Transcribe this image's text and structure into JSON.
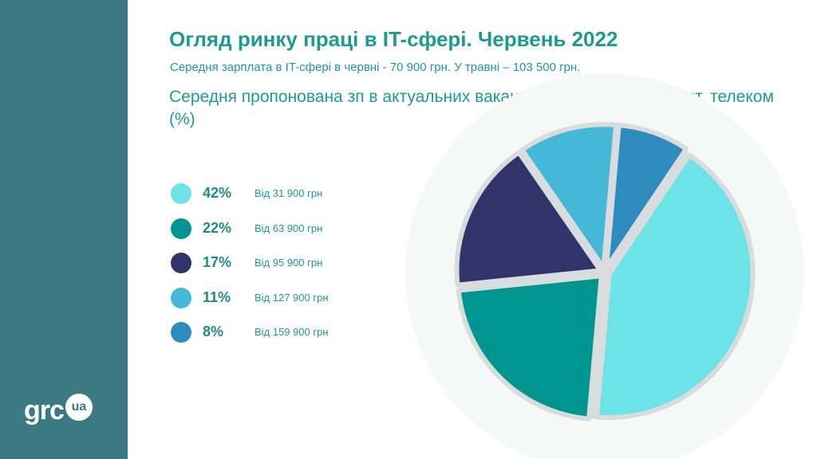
{
  "title": "Огляд ринку праці в IT-сфері. Червень 2022",
  "subtitle": "Середня зарплата в IT-сфері в червні - 70 900 грн. У травні – 103 500 грн.",
  "heading": "Середня пропонована зп в актуальних вакансіях у сфері IT, інтернет, телеком (%)",
  "logo": {
    "text": "grc",
    "badge": "ua"
  },
  "colors": {
    "sidebar": "#3a7a80",
    "accent_text": "#1b9c92"
  },
  "chart_data": {
    "type": "pie",
    "categories": [
      "Від 31 900 грн",
      "Від 63 900 грн",
      "Від 95 900 грн",
      "Від 127 900 грн",
      "Від 159 900 грн"
    ],
    "values": [
      42,
      22,
      17,
      11,
      8
    ],
    "value_labels": [
      "42%",
      "22%",
      "17%",
      "11%",
      "8%"
    ],
    "colors": [
      "#6ce3e6",
      "#00968f",
      "#31346b",
      "#44b8d6",
      "#2d8bbd"
    ],
    "legend_position": "left",
    "title": "Середня пропонована зп в актуальних вакансіях у сфері IT, інтернет, телеком (%)"
  }
}
